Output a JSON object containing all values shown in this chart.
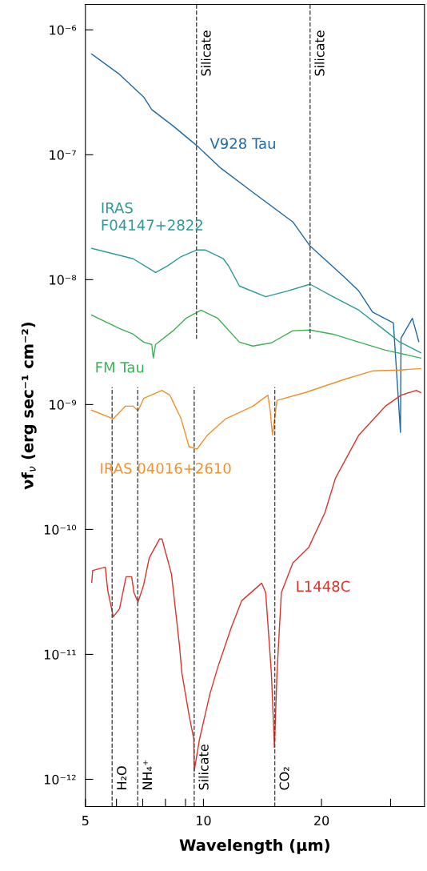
{
  "chart_data": {
    "type": "line",
    "xlabel": "Wavelength (μm)",
    "ylabel": "νf$_{ν}$ (erg sec⁻¹ cm⁻²)",
    "log": "xy",
    "grid": false,
    "legend": false,
    "marker": "none",
    "line_style": "solid",
    "xlim": [
      5,
      36.6
    ],
    "ylim": [
      6.05e-13,
      1.6e-06
    ],
    "xticks": [
      5,
      {
        "value": 6,
        "label": null
      },
      {
        "value": 7,
        "label": null
      },
      {
        "value": 8,
        "label": null
      },
      {
        "value": 9,
        "label": null
      },
      10,
      20,
      {
        "value": 30,
        "label": null
      }
    ],
    "yticks": [
      {
        "value": 1e-12,
        "label": "10⁻¹²"
      },
      {
        "value": 1e-11,
        "label": "10⁻¹¹"
      },
      {
        "value": 1e-10,
        "label": "10⁻¹⁰"
      },
      {
        "value": 1e-09,
        "label": "10⁻⁹"
      },
      {
        "value": 1e-08,
        "label": "10⁻⁸"
      },
      {
        "value": 1e-07,
        "label": "10⁻⁷"
      },
      {
        "value": 1e-06,
        "label": "10⁻⁶"
      }
    ],
    "series": [
      {
        "name": "V928 Tau",
        "color": "#1f6aa5",
        "x": [
          5.19,
          6.11,
          7.04,
          7.38,
          8.37,
          9.63,
          11.08,
          13.37,
          16.9,
          18.7,
          23.0,
          24.9,
          27.0,
          30.5,
          31.8,
          31.9,
          34.1,
          35.4
        ],
        "values": [
          6.4e-07,
          4.4e-07,
          2.9e-07,
          2.3e-07,
          1.7e-07,
          1.18e-07,
          7.8e-08,
          5e-08,
          2.9e-08,
          1.86e-08,
          1.03e-08,
          8.1e-09,
          5.5e-09,
          4.5e-09,
          6e-10,
          3.4e-09,
          4.9e-09,
          3.2e-09
        ]
      },
      {
        "name": "IRAS F04147+2822",
        "color": "#2a9a96",
        "x": [
          5.19,
          6.62,
          7.55,
          8.1,
          8.77,
          9.63,
          10.09,
          11.24,
          11.62,
          12.35,
          14.41,
          16.35,
          18.7,
          21.4,
          24.9,
          29.1,
          31.5,
          35.8
        ],
        "values": [
          1.78e-08,
          1.47e-08,
          1.14e-08,
          1.29e-08,
          1.53e-08,
          1.73e-08,
          1.73e-08,
          1.47e-08,
          1.27e-08,
          8.9e-09,
          7.3e-09,
          8.1e-09,
          9.2e-09,
          7.3e-09,
          5.7e-09,
          3.9e-09,
          3.2e-09,
          2.6e-09
        ]
      },
      {
        "name": "FM Tau",
        "color": "#3cb054",
        "x": [
          5.19,
          6.11,
          6.62,
          7.04,
          7.38,
          7.45,
          7.55,
          8.37,
          9.02,
          9.86,
          10.88,
          12.35,
          13.37,
          14.9,
          16.9,
          18.7,
          21.4,
          24.9,
          29.1,
          35.8
        ],
        "values": [
          5.2e-09,
          4.06e-09,
          3.66e-09,
          3.16e-09,
          3.03e-09,
          2.36e-09,
          3.03e-09,
          3.9e-09,
          4.9e-09,
          5.7e-09,
          4.9e-09,
          3.16e-09,
          2.94e-09,
          3.12e-09,
          3.9e-09,
          3.95e-09,
          3.66e-09,
          3.16e-09,
          2.73e-09,
          2.36e-09
        ]
      },
      {
        "name": "IRAS 04016+2610",
        "color": "#f0902a",
        "x": [
          5.19,
          5.89,
          6.32,
          6.62,
          6.81,
          7.04,
          7.84,
          8.21,
          8.77,
          9.19,
          9.63,
          10.24,
          11.4,
          13.37,
          14.6,
          14.8,
          15.0,
          15.4,
          18.2,
          23.0,
          27.0,
          31.5,
          35.8
        ],
        "values": [
          9e-10,
          7.7e-10,
          9.7e-10,
          9.7e-10,
          8.9e-10,
          1.12e-09,
          1.3e-09,
          1.19e-09,
          7.7e-10,
          4.6e-10,
          4.4e-10,
          5.7e-10,
          7.7e-10,
          9.7e-10,
          1.19e-09,
          8.9e-10,
          5.7e-10,
          1.08e-09,
          1.25e-09,
          1.6e-09,
          1.86e-09,
          1.89e-09,
          1.94e-09
        ]
      },
      {
        "name": "L1448C",
        "color": "#d6352e",
        "x": [
          5.19,
          5.22,
          5.62,
          5.7,
          5.89,
          6.11,
          6.35,
          6.56,
          6.65,
          6.81,
          7.04,
          7.27,
          7.73,
          7.84,
          8.29,
          8.69,
          8.81,
          9.19,
          9.45,
          9.47,
          9.77,
          10.38,
          10.88,
          11.78,
          12.52,
          14.08,
          14.41,
          14.9,
          15.17,
          15.4,
          15.8,
          16.9,
          18.56,
          20.4,
          21.7,
          24.9,
          29.1,
          31.9,
          34.9,
          35.8
        ],
        "values": [
          3.78e-11,
          4.7e-11,
          5e-11,
          3.26e-11,
          2e-11,
          2.32e-11,
          4.19e-11,
          4.19e-11,
          3.12e-11,
          2.61e-11,
          3.61e-11,
          5.9e-11,
          8.4e-11,
          8.4e-11,
          4.38e-11,
          1.16e-11,
          7.1e-12,
          3.26e-12,
          2.09e-12,
          1.16e-12,
          2.09e-12,
          4.78e-12,
          7.9e-12,
          1.65e-11,
          2.69e-11,
          3.72e-11,
          3.12e-11,
          7.1e-12,
          1.8e-12,
          7.1e-12,
          3.12e-11,
          5.4e-11,
          7.2e-11,
          1.36e-10,
          2.57e-10,
          5.7e-10,
          9.7e-10,
          1.19e-09,
          1.3e-09,
          1.25e-09
        ]
      }
    ],
    "ref_lines": [
      {
        "axis": "x",
        "value": 9.6,
        "label": "Silicate",
        "color": "#444444",
        "line_style": "dashed"
      },
      {
        "axis": "x",
        "value": 18.7,
        "label": "Silicate",
        "color": "#444444",
        "line_style": "dashed"
      },
      {
        "axis": "x",
        "value": 5.85,
        "label": "H₂O",
        "color": "#444444",
        "line_style": "dashed"
      },
      {
        "axis": "x",
        "value": 6.8,
        "label": "NH₄⁺",
        "color": "#444444",
        "line_style": "dashed"
      },
      {
        "axis": "x",
        "value": 9.47,
        "label": "Silicate",
        "color": "#444444",
        "line_style": "dashed"
      },
      {
        "axis": "x",
        "value": 15.2,
        "label": "CO₂",
        "color": "#444444",
        "line_style": "dashed"
      }
    ]
  }
}
